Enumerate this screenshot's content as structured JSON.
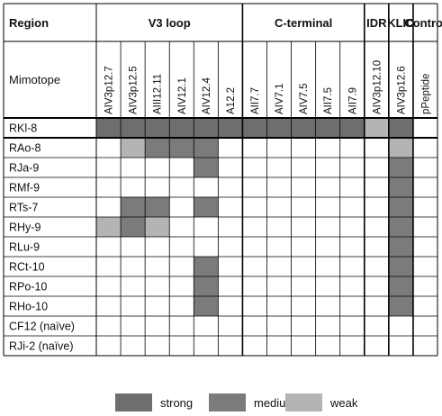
{
  "table": {
    "region_header": "Region",
    "mimotope_label": "Mimotope",
    "groups": [
      {
        "name": "V3 loop",
        "span": 6
      },
      {
        "name": "C-terminal",
        "span": 5
      },
      {
        "name": "IDR",
        "span": 1
      },
      {
        "name": "KLIC",
        "span": 1
      },
      {
        "name": "Control",
        "span": 1
      }
    ],
    "mimotopes": [
      "AIV3p12.7",
      "AIV3p12.5",
      "AIII12.11",
      "AIV12.1",
      "AIV12.4",
      "A12.2",
      "AII7.7",
      "AIV7.1",
      "AIV7.5",
      "AII7.5",
      "AII7.9",
      "AIV3p12.10",
      "AIV3p12.6",
      "pPeptide"
    ],
    "rows": [
      {
        "label": "RKl-8",
        "cells": [
          "strong",
          "strong",
          "strong",
          "strong",
          "strong",
          "strong",
          "strong",
          "strong",
          "strong",
          "strong",
          "strong",
          "weak",
          "strong",
          ""
        ]
      },
      {
        "label": "RAo-8",
        "cells": [
          "",
          "weak",
          "medium",
          "medium",
          "medium",
          "",
          "",
          "",
          "",
          "",
          "",
          "",
          "weak",
          ""
        ]
      },
      {
        "label": "RJa-9",
        "cells": [
          "",
          "",
          "",
          "",
          "medium",
          "",
          "",
          "",
          "",
          "",
          "",
          "",
          "medium",
          ""
        ]
      },
      {
        "label": "RMf-9",
        "cells": [
          "",
          "",
          "",
          "",
          "",
          "",
          "",
          "",
          "",
          "",
          "",
          "",
          "medium",
          ""
        ]
      },
      {
        "label": "RTs-7",
        "cells": [
          "",
          "medium",
          "medium",
          "",
          "medium",
          "",
          "",
          "",
          "",
          "",
          "",
          "",
          "medium",
          ""
        ]
      },
      {
        "label": "RHy-9",
        "cells": [
          "weak",
          "medium",
          "weak",
          "",
          "",
          "",
          "",
          "",
          "",
          "",
          "",
          "",
          "medium",
          ""
        ]
      },
      {
        "label": "RLu-9",
        "cells": [
          "",
          "",
          "",
          "",
          "",
          "",
          "",
          "",
          "",
          "",
          "",
          "",
          "medium",
          ""
        ]
      },
      {
        "label": "RCt-10",
        "cells": [
          "",
          "",
          "",
          "",
          "medium",
          "",
          "",
          "",
          "",
          "",
          "",
          "",
          "medium",
          ""
        ]
      },
      {
        "label": "RPo-10",
        "cells": [
          "",
          "",
          "",
          "",
          "medium",
          "",
          "",
          "",
          "",
          "",
          "",
          "",
          "medium",
          ""
        ]
      },
      {
        "label": "RHo-10",
        "cells": [
          "",
          "",
          "",
          "",
          "medium",
          "",
          "",
          "",
          "",
          "",
          "",
          "",
          "medium",
          ""
        ]
      },
      {
        "label": "CF12 (naïve)",
        "cells": [
          "",
          "",
          "",
          "",
          "",
          "",
          "",
          "",
          "",
          "",
          "",
          "",
          "",
          ""
        ]
      },
      {
        "label": "RJi-2 (naïve)",
        "cells": [
          "",
          "",
          "",
          "",
          "",
          "",
          "",
          "",
          "",
          "",
          "",
          "",
          "",
          ""
        ]
      }
    ]
  },
  "legend": [
    {
      "key": "strong",
      "label": "strong",
      "color": "#6e6e6e"
    },
    {
      "key": "medium",
      "label": "medium",
      "color": "#7b7b7b"
    },
    {
      "key": "weak",
      "label": "weak",
      "color": "#b4b4b4"
    }
  ]
}
